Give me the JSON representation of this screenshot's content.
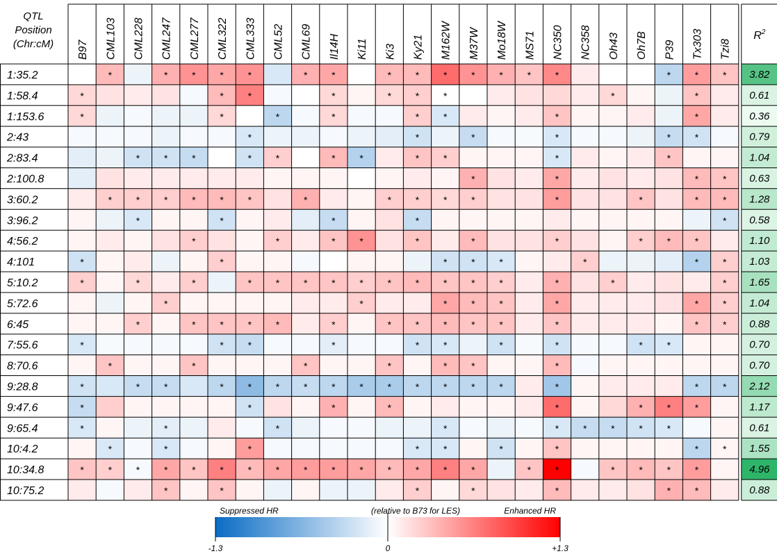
{
  "chart_data": {
    "type": "heatmap",
    "corner_label_lines": [
      "QTL",
      "Position",
      "(Chr:cM)"
    ],
    "columns": [
      "B97",
      "CML103",
      "CML228",
      "CML247",
      "CML277",
      "CML322",
      "CML333",
      "CML52",
      "CML69",
      "Il14H",
      "Ki11",
      "Ki3",
      "Ky21",
      "M162W",
      "M37W",
      "Mo18W",
      "MS71",
      "NC350",
      "NC358",
      "Oh43",
      "Oh7B",
      "P39",
      "Tx303",
      "Tzi8"
    ],
    "r2_header": "R",
    "r2_header_sup": "2",
    "rows": [
      "1:35.2",
      "1:58.4",
      "1:153.6",
      "2:43",
      "2:83.4",
      "2:100.8",
      "3:60.2",
      "3:96.2",
      "4:56.2",
      "4:101",
      "5:10.2",
      "5:72.6",
      "6:45",
      "7:55.6",
      "8:70.6",
      "9:28.8",
      "9:47.6",
      "9:65.4",
      "10:4.2",
      "10:34.8",
      "10:75.2"
    ],
    "r2": [
      "3.82",
      "0.61",
      "0.36",
      "0.79",
      "1.04",
      "0.63",
      "1.28",
      "0.58",
      "1.10",
      "1.03",
      "1.65",
      "1.04",
      "0.88",
      "0.70",
      "0.70",
      "2.12",
      "1.17",
      "0.61",
      "1.55",
      "4.96",
      "0.88"
    ],
    "value_range": [
      -1.3,
      1.3
    ],
    "values": [
      [
        0,
        0.35,
        -0.1,
        0.4,
        0.55,
        0.45,
        0.55,
        -0.2,
        0.4,
        0.45,
        0,
        0.35,
        0.35,
        0.75,
        0.55,
        0.4,
        0.3,
        0.6,
        0.1,
        0,
        0,
        -0.35,
        0.5,
        0.3
      ],
      [
        0.2,
        0.15,
        0.1,
        0.15,
        -0.05,
        0.35,
        0.65,
        -0.05,
        0,
        0.2,
        0.05,
        0.2,
        0.25,
        0,
        0,
        0.1,
        0.15,
        0.2,
        0.1,
        0.2,
        0.05,
        -0.1,
        0.3,
        0.1
      ],
      [
        0.2,
        -0.1,
        -0.05,
        -0.1,
        -0.1,
        0.2,
        0,
        -0.35,
        -0.05,
        0.2,
        -0.05,
        -0.05,
        0.25,
        -0.2,
        0.1,
        0.05,
        0.1,
        0.3,
        0.05,
        0.05,
        0.1,
        -0.1,
        0.45,
        0.1
      ],
      [
        -0.05,
        -0.05,
        -0.05,
        -0.1,
        -0.05,
        -0.05,
        -0.2,
        -0.1,
        -0.1,
        -0.05,
        -0.1,
        -0.15,
        -0.25,
        -0.1,
        -0.3,
        -0.05,
        -0.05,
        -0.2,
        -0.05,
        -0.05,
        -0.1,
        -0.3,
        -0.25,
        -0.05
      ],
      [
        -0.15,
        -0.1,
        -0.25,
        -0.25,
        -0.3,
        0,
        -0.25,
        0.25,
        0,
        0.35,
        -0.4,
        0.1,
        0.3,
        0.25,
        0.05,
        0.05,
        0.05,
        -0.2,
        0.1,
        0.05,
        0.1,
        0.3,
        0.05,
        0.05
      ],
      [
        -0.15,
        0.15,
        0.1,
        0.1,
        0.1,
        0.1,
        0.1,
        0.05,
        0.05,
        0.05,
        0,
        0.05,
        0.1,
        0.05,
        0.4,
        0.15,
        0.1,
        0.45,
        0.1,
        0.15,
        0.1,
        0.15,
        0.35,
        0.3
      ],
      [
        0.1,
        0.25,
        0.25,
        0.25,
        0.35,
        0.35,
        0.3,
        0.15,
        0.4,
        0.1,
        0.05,
        0.25,
        0.25,
        0.2,
        0.25,
        0.15,
        0.15,
        0.5,
        0.15,
        0.15,
        0.3,
        0.15,
        0.35,
        0.35
      ],
      [
        0.05,
        -0.1,
        -0.2,
        0.05,
        0.05,
        -0.25,
        0.05,
        0.1,
        -0.15,
        -0.3,
        0.05,
        0.15,
        -0.3,
        0.05,
        0.05,
        0.05,
        0.05,
        0.1,
        0.05,
        0.05,
        0.05,
        0.05,
        -0.1,
        -0.25
      ],
      [
        0.05,
        0.1,
        0.05,
        0.15,
        0.25,
        0.15,
        0.05,
        0.25,
        0.1,
        0.3,
        0.55,
        0.15,
        0.3,
        0.1,
        0.35,
        0.15,
        0.15,
        0.25,
        0.15,
        0.05,
        0.25,
        0.35,
        0.3,
        0.1
      ],
      [
        -0.25,
        0.05,
        0.1,
        -0.1,
        0.05,
        0.25,
        0.05,
        0.05,
        -0.05,
        0,
        0.05,
        0.05,
        -0.1,
        -0.25,
        -0.25,
        -0.2,
        0.05,
        0.1,
        0.25,
        -0.1,
        -0.1,
        -0.15,
        -0.4,
        0.25
      ],
      [
        0.25,
        0.05,
        0.2,
        0.1,
        0.25,
        -0.1,
        0.3,
        0.3,
        0.3,
        0.3,
        0.25,
        0.3,
        0.35,
        0.3,
        0.3,
        0.25,
        0.1,
        0.4,
        0.15,
        0.25,
        0.1,
        0.15,
        0.1,
        0.25
      ],
      [
        0.05,
        -0.1,
        0.05,
        0.25,
        0.05,
        0.05,
        0.05,
        0.05,
        0.1,
        0.1,
        0.25,
        0.1,
        0.1,
        0.45,
        0.35,
        0.3,
        0.1,
        0.45,
        0.1,
        0.1,
        0.1,
        0.15,
        0.45,
        0.25
      ],
      [
        0.05,
        0.05,
        0.25,
        0.05,
        0.3,
        0.3,
        0.3,
        0.35,
        0.1,
        0.25,
        0.05,
        0.3,
        0.3,
        0.35,
        0.3,
        0.3,
        0.1,
        0.3,
        0.1,
        0.1,
        0.1,
        0.05,
        0.3,
        0.25
      ],
      [
        -0.2,
        -0.05,
        -0.05,
        -0.05,
        -0.05,
        -0.25,
        -0.3,
        -0.05,
        -0.05,
        -0.15,
        -0.05,
        -0.05,
        -0.25,
        -0.2,
        -0.1,
        -0.25,
        -0.05,
        -0.25,
        -0.05,
        -0.05,
        -0.25,
        -0.2,
        0.05,
        0.05
      ],
      [
        0.05,
        0.3,
        0.05,
        0.05,
        0.3,
        0.05,
        0.05,
        0.05,
        0.3,
        0.05,
        0.05,
        0.3,
        0.05,
        0.35,
        0.3,
        0.05,
        0.05,
        0.35,
        -0.05,
        0.05,
        0.05,
        0.05,
        0.05,
        0.05
      ],
      [
        -0.25,
        -0.2,
        -0.3,
        -0.3,
        -0.2,
        -0.35,
        -0.6,
        -0.35,
        -0.3,
        -0.35,
        -0.45,
        -0.45,
        -0.35,
        -0.35,
        -0.35,
        -0.35,
        0.1,
        -0.5,
        0.05,
        0.1,
        0.1,
        0.1,
        -0.35,
        -0.35
      ],
      [
        -0.3,
        0.25,
        0.05,
        0.05,
        0.05,
        0.05,
        -0.25,
        0.15,
        0.05,
        0.4,
        0.05,
        0.35,
        0.05,
        0.1,
        0.05,
        0.05,
        0.1,
        0.75,
        0.05,
        0.2,
        0.4,
        0.65,
        0.5,
        0.05
      ],
      [
        -0.2,
        0.05,
        -0.1,
        -0.15,
        -0.1,
        0.1,
        -0.05,
        -0.25,
        -0.1,
        -0.05,
        -0.05,
        -0.1,
        -0.1,
        -0.2,
        -0.05,
        -0.1,
        -0.05,
        -0.2,
        -0.3,
        -0.3,
        -0.25,
        -0.2,
        -0.05,
        0.05
      ],
      [
        0.05,
        -0.2,
        -0.05,
        -0.2,
        -0.05,
        0.05,
        0.5,
        -0.05,
        -0.05,
        -0.05,
        -0.05,
        -0.05,
        -0.2,
        -0.2,
        0.05,
        -0.25,
        0.05,
        0.3,
        0.05,
        0.05,
        0.05,
        0.05,
        -0.35,
        0.05
      ],
      [
        0.3,
        0.25,
        -0.05,
        0.45,
        0.3,
        0.65,
        0.35,
        0.45,
        0.5,
        0.5,
        0.45,
        0.35,
        0.45,
        0.65,
        0.45,
        -0.1,
        0.3,
        1.3,
        -0.05,
        0.3,
        0.35,
        0.3,
        0.5,
        0.05
      ],
      [
        0.1,
        -0.05,
        0.1,
        0.3,
        0.05,
        0.3,
        0.05,
        -0.1,
        0.05,
        -0.1,
        -0.1,
        0.1,
        0.25,
        0.05,
        0.2,
        0.15,
        0.1,
        0.35,
        0.1,
        0.1,
        0.15,
        0.4,
        0.35,
        0.1
      ]
    ],
    "significant": [
      [
        0,
        1,
        0,
        1,
        1,
        1,
        1,
        0,
        1,
        1,
        0,
        1,
        1,
        1,
        1,
        1,
        1,
        1,
        0,
        0,
        0,
        1,
        1,
        1
      ],
      [
        1,
        0,
        0,
        0,
        0,
        1,
        1,
        0,
        0,
        1,
        0,
        1,
        1,
        1,
        0,
        0,
        0,
        0,
        0,
        1,
        0,
        0,
        1,
        0
      ],
      [
        1,
        0,
        0,
        0,
        0,
        1,
        0,
        1,
        0,
        1,
        0,
        0,
        1,
        1,
        0,
        0,
        0,
        1,
        0,
        0,
        0,
        0,
        1,
        0
      ],
      [
        0,
        0,
        0,
        0,
        0,
        0,
        1,
        0,
        0,
        0,
        0,
        0,
        1,
        0,
        1,
        0,
        0,
        1,
        0,
        0,
        0,
        1,
        1,
        0
      ],
      [
        0,
        0,
        1,
        1,
        1,
        0,
        1,
        1,
        0,
        1,
        1,
        0,
        1,
        1,
        0,
        0,
        0,
        1,
        0,
        0,
        0,
        1,
        0,
        0
      ],
      [
        0,
        0,
        0,
        0,
        0,
        0,
        0,
        0,
        0,
        0,
        0,
        0,
        0,
        0,
        1,
        0,
        0,
        1,
        0,
        0,
        0,
        0,
        1,
        1
      ],
      [
        0,
        1,
        1,
        1,
        1,
        1,
        1,
        0,
        1,
        0,
        0,
        1,
        1,
        1,
        1,
        0,
        0,
        1,
        0,
        0,
        1,
        0,
        1,
        1
      ],
      [
        0,
        0,
        1,
        0,
        0,
        1,
        0,
        0,
        0,
        1,
        0,
        0,
        1,
        0,
        0,
        0,
        0,
        0,
        0,
        0,
        0,
        0,
        0,
        1
      ],
      [
        0,
        0,
        0,
        0,
        1,
        0,
        0,
        1,
        0,
        1,
        1,
        0,
        1,
        0,
        1,
        0,
        0,
        1,
        0,
        0,
        1,
        1,
        1,
        0
      ],
      [
        1,
        0,
        0,
        0,
        0,
        1,
        0,
        0,
        0,
        0,
        0,
        0,
        0,
        1,
        1,
        1,
        0,
        0,
        1,
        0,
        0,
        0,
        1,
        1
      ],
      [
        1,
        0,
        1,
        0,
        1,
        0,
        1,
        1,
        1,
        1,
        1,
        1,
        1,
        1,
        1,
        1,
        0,
        1,
        0,
        1,
        0,
        0,
        0,
        1
      ],
      [
        0,
        0,
        0,
        1,
        0,
        0,
        0,
        0,
        0,
        0,
        1,
        0,
        0,
        1,
        1,
        1,
        0,
        1,
        0,
        0,
        0,
        0,
        1,
        1
      ],
      [
        0,
        0,
        1,
        0,
        1,
        1,
        1,
        1,
        0,
        1,
        0,
        1,
        1,
        1,
        1,
        1,
        0,
        1,
        0,
        0,
        0,
        0,
        1,
        1
      ],
      [
        1,
        0,
        0,
        0,
        0,
        1,
        1,
        0,
        0,
        1,
        0,
        0,
        1,
        1,
        0,
        1,
        0,
        1,
        0,
        0,
        1,
        1,
        0,
        0
      ],
      [
        0,
        1,
        0,
        0,
        1,
        0,
        0,
        0,
        1,
        0,
        0,
        1,
        0,
        1,
        1,
        0,
        0,
        1,
        0,
        0,
        0,
        0,
        0,
        0
      ],
      [
        1,
        0,
        1,
        1,
        0,
        1,
        1,
        1,
        1,
        1,
        1,
        1,
        1,
        1,
        1,
        1,
        0,
        1,
        0,
        0,
        0,
        0,
        1,
        1
      ],
      [
        1,
        0,
        0,
        0,
        0,
        0,
        1,
        0,
        0,
        1,
        0,
        1,
        0,
        0,
        0,
        0,
        0,
        1,
        0,
        0,
        1,
        1,
        1,
        0
      ],
      [
        1,
        0,
        0,
        1,
        0,
        0,
        0,
        1,
        0,
        0,
        0,
        0,
        0,
        1,
        0,
        0,
        0,
        1,
        1,
        1,
        1,
        1,
        0,
        0
      ],
      [
        0,
        1,
        0,
        1,
        0,
        0,
        1,
        0,
        0,
        0,
        0,
        0,
        1,
        1,
        0,
        1,
        0,
        1,
        0,
        0,
        0,
        0,
        1,
        1
      ],
      [
        1,
        1,
        1,
        1,
        1,
        1,
        1,
        1,
        1,
        1,
        1,
        1,
        1,
        1,
        1,
        0,
        1,
        1,
        0,
        1,
        1,
        1,
        1,
        0
      ],
      [
        0,
        0,
        0,
        1,
        0,
        1,
        0,
        0,
        0,
        0,
        0,
        0,
        1,
        0,
        1,
        0,
        0,
        1,
        0,
        0,
        0,
        1,
        1,
        0
      ]
    ],
    "significance_marker": "*",
    "legend": {
      "left_label": "Suppressed HR",
      "center_label": "(relative to B73 for LES)",
      "right_label": "Enhanced HR",
      "min_label": "-1.3",
      "mid_label": "0",
      "max_label": "+1.3",
      "placement": "bottom-center"
    },
    "colors": {
      "negative": "#0a6cc4",
      "positive": "#ff0000",
      "neutral": "#ffffff",
      "r2_high": "#2fb56a",
      "r2_low": "#ecfaf0"
    }
  }
}
